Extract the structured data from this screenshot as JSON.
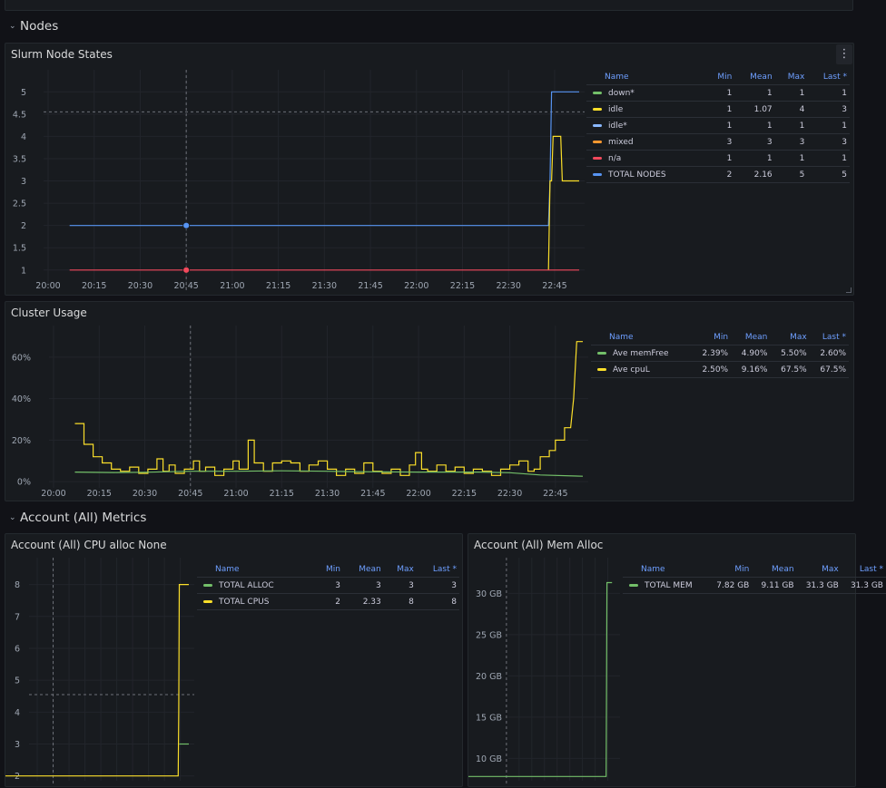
{
  "rows": {
    "nodes": {
      "title": "Nodes",
      "collapse_icon": "chevron-down-icon"
    },
    "account": {
      "title": "Account (All) Metrics",
      "collapse_icon": "chevron-down-icon"
    }
  },
  "panel_menu_icon": "more-vertical-icon",
  "colors": {
    "green": "#73bf69",
    "yellow": "#fade2a",
    "light_blue": "#8ab8ff",
    "orange": "#ff9830",
    "red": "#f2495c",
    "blue": "#5794f2"
  },
  "panels": {
    "slurm": {
      "title": "Slurm Node States",
      "legend": {
        "columns": [
          "Name",
          "Min",
          "Mean",
          "Max",
          "Last *"
        ],
        "rows": [
          {
            "name": "down*",
            "color": "#73bf69",
            "min": "1",
            "mean": "1",
            "max": "1",
            "last": "1"
          },
          {
            "name": "idle",
            "color": "#fade2a",
            "min": "1",
            "mean": "1.07",
            "max": "4",
            "last": "3"
          },
          {
            "name": "idle*",
            "color": "#8ab8ff",
            "min": "1",
            "mean": "1",
            "max": "1",
            "last": "1"
          },
          {
            "name": "mixed",
            "color": "#ff9830",
            "min": "3",
            "mean": "3",
            "max": "3",
            "last": "3"
          },
          {
            "name": "n/a",
            "color": "#f2495c",
            "min": "1",
            "mean": "1",
            "max": "1",
            "last": "1"
          },
          {
            "name": "TOTAL NODES",
            "color": "#5794f2",
            "min": "2",
            "mean": "2.16",
            "max": "5",
            "last": "5"
          }
        ]
      },
      "chart_data": {
        "type": "line",
        "x_ticks": [
          "20:00",
          "20:15",
          "20:30",
          "20:45",
          "21:00",
          "21:15",
          "21:30",
          "21:45",
          "22:00",
          "22:15",
          "22:30",
          "22:45"
        ],
        "y_ticks": [
          "1",
          "1.5",
          "2",
          "2.5",
          "3",
          "3.5",
          "4",
          "4.5",
          "5"
        ],
        "x_range_minutes_after_20_00": [
          0,
          173
        ],
        "ylim": [
          0.65,
          5.25
        ],
        "crosshair": {
          "x": 45,
          "y": 4.55
        },
        "series": [
          {
            "name": "TOTAL NODES",
            "color": "#5794f2",
            "points": [
              [
                7,
                2
              ],
              [
                163,
                2
              ],
              [
                163.5,
                3
              ],
              [
                164,
                5
              ],
              [
                173,
                5
              ]
            ]
          },
          {
            "name": "idle",
            "color": "#fade2a",
            "points": [
              [
                163,
                1
              ],
              [
                163.5,
                3
              ],
              [
                164,
                3
              ],
              [
                164.5,
                4
              ],
              [
                167,
                4
              ],
              [
                167.5,
                3
              ],
              [
                173,
                3
              ]
            ]
          },
          {
            "name": "n/a",
            "color": "#f2495c",
            "points": [
              [
                7,
                1
              ],
              [
                173,
                1
              ]
            ]
          }
        ],
        "markers": [
          {
            "series": "TOTAL NODES",
            "x": 45,
            "y": 2,
            "color": "#5794f2"
          },
          {
            "series": "n/a",
            "x": 45,
            "y": 1,
            "color": "#f2495c"
          }
        ]
      }
    },
    "cluster": {
      "title": "Cluster Usage",
      "legend": {
        "columns": [
          "Name",
          "Min",
          "Mean",
          "Max",
          "Last *"
        ],
        "rows": [
          {
            "name": "Ave memFree",
            "color": "#73bf69",
            "min": "2.39%",
            "mean": "4.90%",
            "max": "5.50%",
            "last": "2.60%"
          },
          {
            "name": "Ave cpuL",
            "color": "#fade2a",
            "min": "2.50%",
            "mean": "9.16%",
            "max": "67.5%",
            "last": "67.5%"
          }
        ]
      },
      "chart_data": {
        "type": "line",
        "x_ticks": [
          "20:00",
          "20:15",
          "20:30",
          "20:45",
          "21:00",
          "21:15",
          "21:30",
          "21:45",
          "22:00",
          "22:15",
          "22:30",
          "22:45"
        ],
        "y_ticks": [
          "0%",
          "20%",
          "40%",
          "60%"
        ],
        "x_range_minutes_after_20_00": [
          0,
          174
        ],
        "ylim": [
          -3,
          70
        ],
        "crosshair": {
          "x": 45
        },
        "series": [
          {
            "name": "Ave cpuL",
            "color": "#fade2a",
            "points": [
              [
                7,
                28
              ],
              [
                10,
                28
              ],
              [
                10,
                18
              ],
              [
                13,
                18
              ],
              [
                13,
                12
              ],
              [
                16,
                12
              ],
              [
                16,
                9
              ],
              [
                19,
                9
              ],
              [
                19,
                6
              ],
              [
                22,
                6
              ],
              [
                22,
                5
              ],
              [
                25,
                5
              ],
              [
                25,
                7
              ],
              [
                28,
                7
              ],
              [
                28,
                4
              ],
              [
                31,
                4
              ],
              [
                31,
                6
              ],
              [
                34,
                6
              ],
              [
                34,
                11
              ],
              [
                36,
                11
              ],
              [
                36,
                5
              ],
              [
                38,
                5
              ],
              [
                38,
                8
              ],
              [
                40,
                8
              ],
              [
                40,
                4
              ],
              [
                43,
                4
              ],
              [
                43,
                6
              ],
              [
                46,
                6
              ],
              [
                46,
                10
              ],
              [
                48,
                10
              ],
              [
                48,
                5
              ],
              [
                50,
                5
              ],
              [
                50,
                7
              ],
              [
                53,
                7
              ],
              [
                53,
                3
              ],
              [
                56,
                3
              ],
              [
                56,
                6
              ],
              [
                59,
                6
              ],
              [
                59,
                10
              ],
              [
                61,
                10
              ],
              [
                61,
                6
              ],
              [
                64,
                6
              ],
              [
                64,
                20
              ],
              [
                66,
                20
              ],
              [
                66,
                9
              ],
              [
                69,
                9
              ],
              [
                69,
                5
              ],
              [
                72,
                5
              ],
              [
                72,
                9
              ],
              [
                75,
                9
              ],
              [
                75,
                10
              ],
              [
                78,
                10
              ],
              [
                78,
                9
              ],
              [
                81,
                9
              ],
              [
                81,
                5
              ],
              [
                84,
                5
              ],
              [
                84,
                8
              ],
              [
                87,
                8
              ],
              [
                87,
                10
              ],
              [
                90,
                10
              ],
              [
                90,
                6
              ],
              [
                93,
                6
              ],
              [
                93,
                3
              ],
              [
                96,
                3
              ],
              [
                96,
                6
              ],
              [
                99,
                6
              ],
              [
                99,
                4
              ],
              [
                102,
                4
              ],
              [
                102,
                9
              ],
              [
                105,
                9
              ],
              [
                105,
                5
              ],
              [
                108,
                5
              ],
              [
                108,
                4
              ],
              [
                111,
                4
              ],
              [
                111,
                6
              ],
              [
                114,
                6
              ],
              [
                114,
                3
              ],
              [
                117,
                3
              ],
              [
                117,
                8
              ],
              [
                119,
                8
              ],
              [
                119,
                14
              ],
              [
                121,
                14
              ],
              [
                121,
                6
              ],
              [
                123,
                6
              ],
              [
                123,
                5
              ],
              [
                126,
                5
              ],
              [
                126,
                8
              ],
              [
                129,
                8
              ],
              [
                129,
                5
              ],
              [
                132,
                5
              ],
              [
                132,
                7
              ],
              [
                135,
                7
              ],
              [
                135,
                4
              ],
              [
                138,
                4
              ],
              [
                138,
                6
              ],
              [
                141,
                6
              ],
              [
                141,
                5
              ],
              [
                144,
                5
              ],
              [
                144,
                3
              ],
              [
                147,
                3
              ],
              [
                147,
                6
              ],
              [
                150,
                6
              ],
              [
                150,
                8
              ],
              [
                153,
                8
              ],
              [
                153,
                10
              ],
              [
                156,
                10
              ],
              [
                156,
                5
              ],
              [
                158,
                5
              ],
              [
                158,
                6
              ],
              [
                160,
                6
              ],
              [
                160,
                12
              ],
              [
                163,
                12
              ],
              [
                163,
                15
              ],
              [
                165,
                15
              ],
              [
                165,
                20
              ],
              [
                168,
                20
              ],
              [
                168,
                26
              ],
              [
                170,
                26
              ],
              [
                171,
                40
              ],
              [
                172,
                67.5
              ],
              [
                174,
                67.5
              ]
            ]
          },
          {
            "name": "Ave memFree",
            "color": "#73bf69",
            "points": [
              [
                7,
                4.6
              ],
              [
                20,
                4.4
              ],
              [
                30,
                4.5
              ],
              [
                45,
                5.0
              ],
              [
                60,
                5.0
              ],
              [
                75,
                5.2
              ],
              [
                90,
                5.0
              ],
              [
                100,
                4.8
              ],
              [
                120,
                4.6
              ],
              [
                140,
                4.6
              ],
              [
                150,
                4.3
              ],
              [
                160,
                3.2
              ],
              [
                174,
                2.6
              ]
            ]
          }
        ]
      }
    },
    "cpu_alloc": {
      "title": "Account (All) CPU alloc None",
      "legend": {
        "columns": [
          "Name",
          "Min",
          "Mean",
          "Max",
          "Last *"
        ],
        "rows": [
          {
            "name": "TOTAL ALLOC",
            "color": "#73bf69",
            "min": "3",
            "mean": "3",
            "max": "3",
            "last": "3"
          },
          {
            "name": "TOTAL CPUS",
            "color": "#fade2a",
            "min": "2",
            "mean": "2.33",
            "max": "8",
            "last": "8"
          }
        ]
      },
      "chart_data": {
        "type": "line",
        "y_ticks": [
          "2",
          "3",
          "4",
          "5",
          "6",
          "7",
          "8"
        ],
        "x_range_minutes_after_20_00": [
          0,
          173
        ],
        "ylim": [
          1.85,
          8.5
        ],
        "crosshair": {
          "x": 45,
          "y": 4.55
        },
        "series": [
          {
            "name": "TOTAL CPUS",
            "color": "#fade2a",
            "points": [
              [
                0,
                2
              ],
              [
                163,
                2
              ],
              [
                163.5,
                4
              ],
              [
                164,
                8
              ],
              [
                173,
                8
              ]
            ]
          },
          {
            "name": "TOTAL ALLOC",
            "color": "#73bf69",
            "points": [
              [
                164,
                3
              ],
              [
                173,
                3
              ]
            ]
          }
        ]
      }
    },
    "mem_alloc": {
      "title": "Account (All) Mem Alloc",
      "legend": {
        "columns": [
          "Name",
          "Min",
          "Mean",
          "Max",
          "Last *"
        ],
        "rows": [
          {
            "name": "TOTAL MEM",
            "color": "#73bf69",
            "min": "7.82 GB",
            "mean": "9.11 GB",
            "max": "31.3 GB",
            "last": "31.3 GB"
          }
        ]
      },
      "chart_data": {
        "type": "line",
        "y_ticks": [
          "10 GB",
          "15 GB",
          "20 GB",
          "25 GB",
          "30 GB"
        ],
        "x_range_minutes_after_20_00": [
          0,
          173
        ],
        "ylim": [
          7.3,
          33
        ],
        "crosshair": {
          "x": 45
        },
        "series": [
          {
            "name": "TOTAL MEM",
            "color": "#73bf69",
            "points": [
              [
                0,
                7.82
              ],
              [
                163,
                7.82
              ],
              [
                163.5,
                20
              ],
              [
                164,
                31.3
              ],
              [
                170,
                31.3
              ]
            ]
          }
        ]
      }
    }
  }
}
